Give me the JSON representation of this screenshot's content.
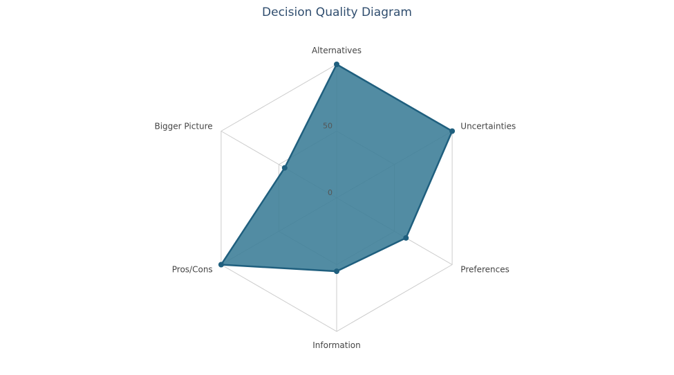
{
  "chart_data": {
    "type": "radar",
    "title": "Decision Quality Diagram",
    "axes": [
      "Alternatives",
      "Uncertainties",
      "Preferences",
      "Information",
      "Pros/Cons",
      "Bigger Picture"
    ],
    "tick_labels": [
      "0",
      "50"
    ],
    "range": [
      0,
      100
    ],
    "series": [
      {
        "values": [
          100,
          100,
          60,
          55,
          100,
          45
        ]
      }
    ],
    "grid": true,
    "legend": "none",
    "colors": {
      "fill": "#3f7f99",
      "stroke": "#1f5f7e",
      "grid": "#cccccc",
      "title": "#2f4d6e"
    }
  }
}
